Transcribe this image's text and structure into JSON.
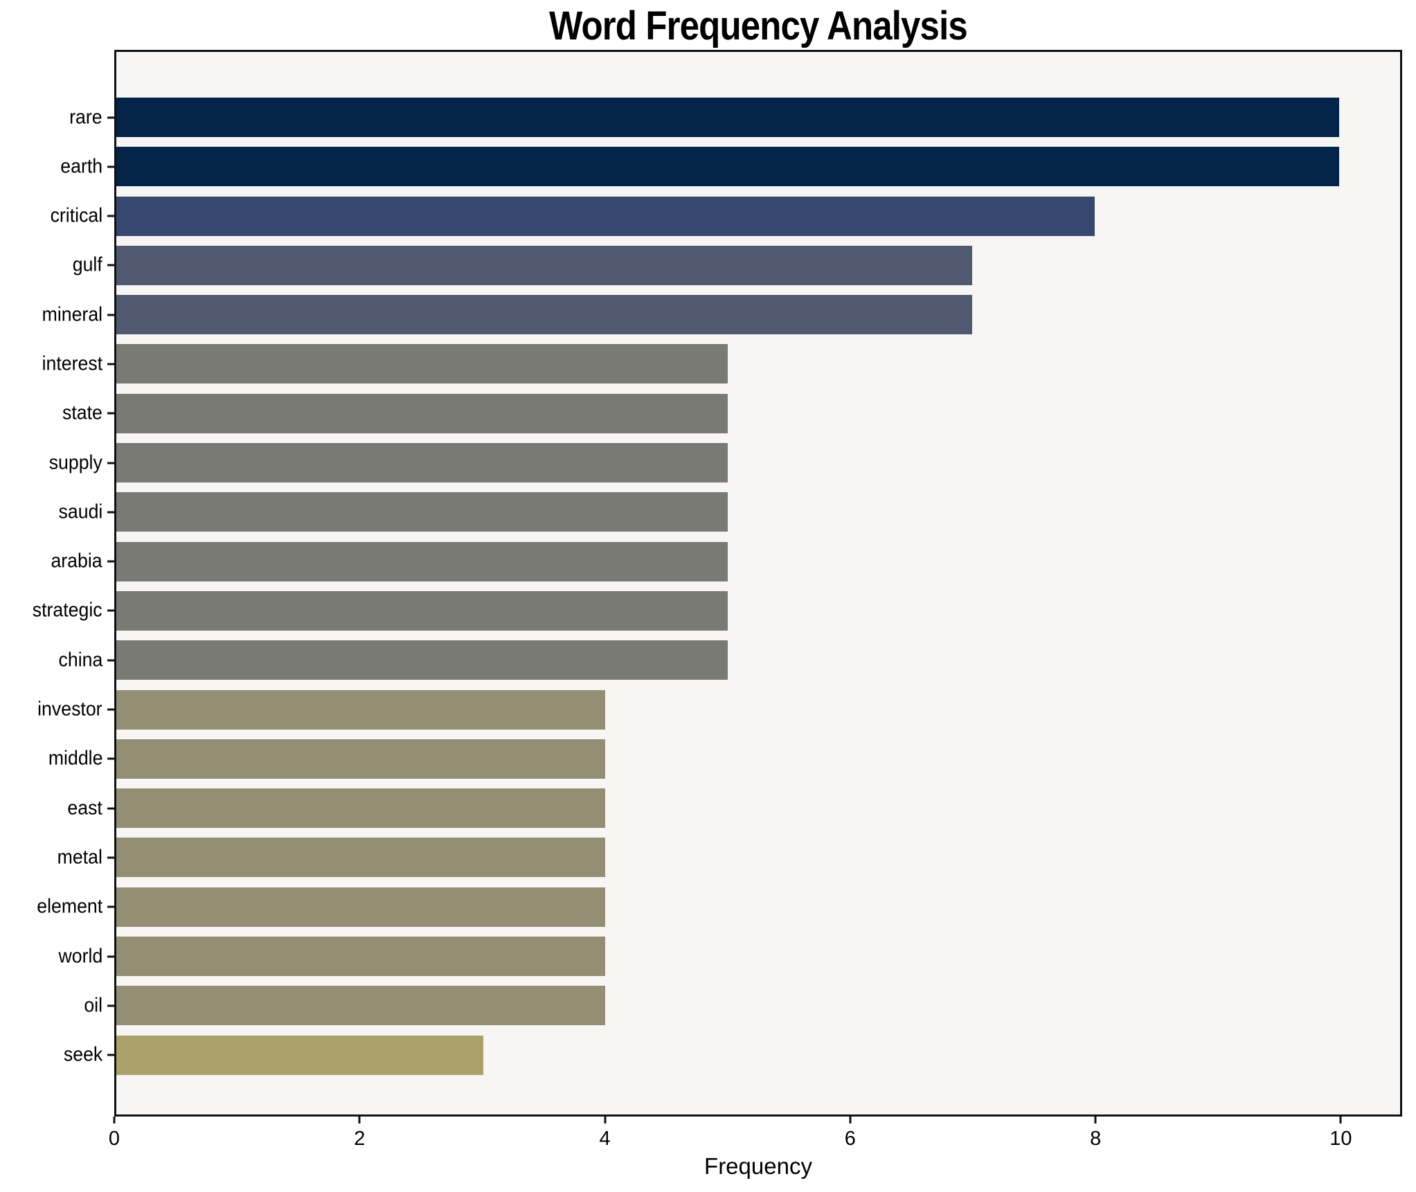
{
  "title": "Word Frequency Analysis",
  "x_axis": {
    "label": "Frequency",
    "tick_labels": [
      "0",
      "2",
      "4",
      "6",
      "8",
      "10"
    ]
  },
  "colors": {
    "figure_background": "#ffffff",
    "plot_background": "#f7f6f4",
    "spine": "#111111",
    "text": "#000000"
  },
  "chart_data": {
    "type": "bar",
    "orientation": "horizontal",
    "title": "Word Frequency Analysis",
    "xlabel": "Frequency",
    "ylabel": "",
    "xlim": [
      0,
      10.5
    ],
    "x_ticks": [
      0,
      2,
      4,
      6,
      8,
      10
    ],
    "grid": false,
    "legend": false,
    "categories": [
      "rare",
      "earth",
      "critical",
      "gulf",
      "mineral",
      "interest",
      "state",
      "supply",
      "saudi",
      "arabia",
      "strategic",
      "china",
      "investor",
      "middle",
      "east",
      "metal",
      "element",
      "world",
      "oil",
      "seek"
    ],
    "values": [
      10,
      10,
      8,
      7,
      7,
      5,
      5,
      5,
      5,
      5,
      5,
      5,
      4,
      4,
      4,
      4,
      4,
      4,
      4,
      3
    ],
    "bar_colors": [
      "#042349",
      "#042349",
      "#36486e",
      "#505970",
      "#505970",
      "#7a7a75",
      "#7a7a75",
      "#7a7a75",
      "#7a7a75",
      "#7a7a75",
      "#7a7a75",
      "#7a7a75",
      "#938e74",
      "#938e74",
      "#938e74",
      "#938e74",
      "#938e74",
      "#938e74",
      "#938e74",
      "#aba26b"
    ]
  }
}
